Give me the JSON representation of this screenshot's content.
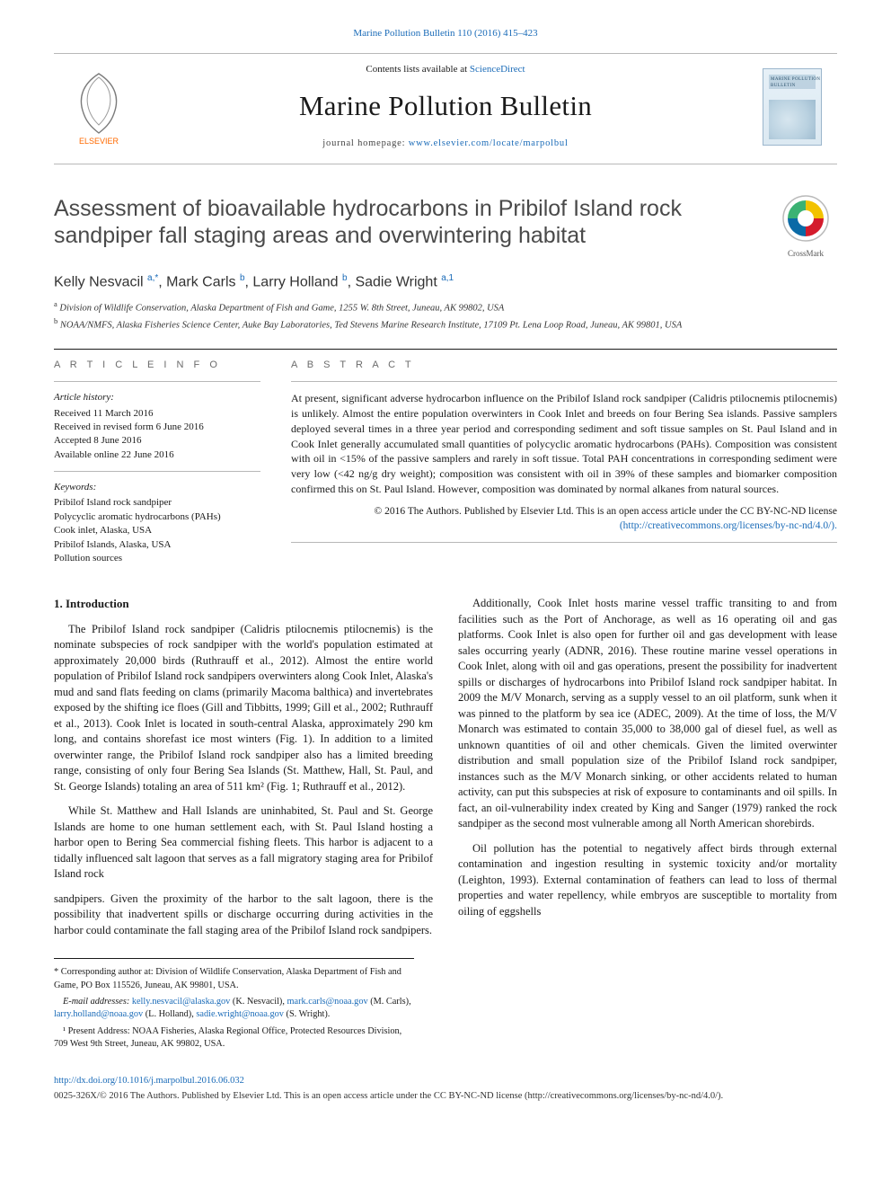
{
  "top_link": "Marine Pollution Bulletin 110 (2016) 415–423",
  "masthead": {
    "contents_prefix": "Contents lists available at ",
    "contents_link": "ScienceDirect",
    "journal": "Marine Pollution Bulletin",
    "homepage_prefix": "journal homepage: ",
    "homepage_url": "www.elsevier.com/locate/marpolbul",
    "cover_caption": "MARINE POLLUTION BULLETIN",
    "elsevier_color": "#ff6a00",
    "elsevier_label": "ELSEVIER"
  },
  "title": "Assessment of bioavailable hydrocarbons in Pribilof Island rock sandpiper fall staging areas and overwintering habitat",
  "crossmark_label": "CrossMark",
  "authors_html": "Kelly Nesvacil <sup>a,*</sup>, Mark Carls <sup>b</sup>, Larry Holland <sup>b</sup>, Sadie Wright <sup>a,1</sup>",
  "authors": [
    {
      "name": "Kelly Nesvacil",
      "marks": "a,*"
    },
    {
      "name": "Mark Carls",
      "marks": "b"
    },
    {
      "name": "Larry Holland",
      "marks": "b"
    },
    {
      "name": "Sadie Wright",
      "marks": "a,1"
    }
  ],
  "affiliations": [
    {
      "mark": "a",
      "text": "Division of Wildlife Conservation, Alaska Department of Fish and Game, 1255 W. 8th Street, Juneau, AK 99802, USA"
    },
    {
      "mark": "b",
      "text": "NOAA/NMFS, Alaska Fisheries Science Center, Auke Bay Laboratories, Ted Stevens Marine Research Institute, 17109 Pt. Lena Loop Road, Juneau, AK 99801, USA"
    }
  ],
  "info": {
    "heading": "A R T I C L E   I N F O",
    "history_heading": "Article history:",
    "history": [
      "Received 11 March 2016",
      "Received in revised form 6 June 2016",
      "Accepted 8 June 2016",
      "Available online 22 June 2016"
    ],
    "keywords_heading": "Keywords:",
    "keywords": [
      "Pribilof Island rock sandpiper",
      "Polycyclic aromatic hydrocarbons (PAHs)",
      "Cook inlet, Alaska, USA",
      "Pribilof Islands, Alaska, USA",
      "Pollution sources"
    ]
  },
  "abstract": {
    "heading": "A B S T R A C T",
    "text": "At present, significant adverse hydrocarbon influence on the Pribilof Island rock sandpiper (Calidris ptilocnemis ptilocnemis) is unlikely. Almost the entire population overwinters in Cook Inlet and breeds on four Bering Sea islands. Passive samplers deployed several times in a three year period and corresponding sediment and soft tissue samples on St. Paul Island and in Cook Inlet generally accumulated small quantities of polycyclic aromatic hydrocarbons (PAHs). Composition was consistent with oil in <15% of the passive samplers and rarely in soft tissue. Total PAH concentrations in corresponding sediment were very low (<42 ng/g dry weight); composition was consistent with oil in 39% of these samples and biomarker composition confirmed this on St. Paul Island. However, composition was dominated by normal alkanes from natural sources.",
    "copyright": "© 2016 The Authors. Published by Elsevier Ltd. This is an open access article under the CC BY-NC-ND license",
    "license_url": "(http://creativecommons.org/licenses/by-nc-nd/4.0/)."
  },
  "body": {
    "section_heading": "1. Introduction",
    "paragraphs": [
      "The Pribilof Island rock sandpiper (Calidris ptilocnemis ptilocnemis) is the nominate subspecies of rock sandpiper with the world's population estimated at approximately 20,000 birds (Ruthrauff et al., 2012). Almost the entire world population of Pribilof Island rock sandpipers overwinters along Cook Inlet, Alaska's mud and sand flats feeding on clams (primarily Macoma balthica) and invertebrates exposed by the shifting ice floes (Gill and Tibbitts, 1999; Gill et al., 2002; Ruthrauff et al., 2013). Cook Inlet is located in south-central Alaska, approximately 290 km long, and contains shorefast ice most winters (Fig. 1). In addition to a limited overwinter range, the Pribilof Island rock sandpiper also has a limited breeding range, consisting of only four Bering Sea Islands (St. Matthew, Hall, St. Paul, and St. George Islands) totaling an area of 511 km² (Fig. 1; Ruthrauff et al., 2012).",
      "While St. Matthew and Hall Islands are uninhabited, St. Paul and St. George Islands are home to one human settlement each, with St. Paul Island hosting a harbor open to Bering Sea commercial fishing fleets. This harbor is adjacent to a tidally influenced salt lagoon that serves as a fall migratory staging area for Pribilof Island rock",
      "sandpipers. Given the proximity of the harbor to the salt lagoon, there is the possibility that inadvertent spills or discharge occurring during activities in the harbor could contaminate the fall staging area of the Pribilof Island rock sandpipers.",
      "Additionally, Cook Inlet hosts marine vessel traffic transiting to and from facilities such as the Port of Anchorage, as well as 16 operating oil and gas platforms. Cook Inlet is also open for further oil and gas development with lease sales occurring yearly (ADNR, 2016). These routine marine vessel operations in Cook Inlet, along with oil and gas operations, present the possibility for inadvertent spills or discharges of hydrocarbons into Pribilof Island rock sandpiper habitat. In 2009 the M/V Monarch, serving as a supply vessel to an oil platform, sunk when it was pinned to the platform by sea ice (ADEC, 2009). At the time of loss, the M/V Monarch was estimated to contain 35,000 to 38,000 gal of diesel fuel, as well as unknown quantities of oil and other chemicals. Given the limited overwinter distribution and small population size of the Pribilof Island rock sandpiper, instances such as the M/V Monarch sinking, or other accidents related to human activity, can put this subspecies at risk of exposure to contaminants and oil spills. In fact, an oil-vulnerability index created by King and Sanger (1979) ranked the rock sandpiper as the second most vulnerable among all North American shorebirds.",
      "Oil pollution has the potential to negatively affect birds through external contamination and ingestion resulting in systemic toxicity and/or mortality (Leighton, 1993). External contamination of feathers can lead to loss of thermal properties and water repellency, while embryos are susceptible to mortality from oiling of eggshells"
    ]
  },
  "footnotes": {
    "corr_label": "* Corresponding author at: Division of Wildlife Conservation, Alaska Department of Fish and Game, PO Box 115526, Juneau, AK 99801, USA.",
    "email_label": "E-mail addresses:",
    "emails": [
      {
        "addr": "kelly.nesvacil@alaska.gov",
        "who": "(K. Nesvacil),"
      },
      {
        "addr": "mark.carls@noaa.gov",
        "who": "(M. Carls),"
      },
      {
        "addr": "larry.holland@noaa.gov",
        "who": "(L. Holland),"
      },
      {
        "addr": "sadie.wright@noaa.gov",
        "who": "(S. Wright)."
      }
    ],
    "present_addr": "¹ Present Address: NOAA Fisheries, Alaska Regional Office, Protected Resources Division, 709 West 9th Street, Juneau, AK 99802, USA."
  },
  "bottom": {
    "doi": "http://dx.doi.org/10.1016/j.marpolbul.2016.06.032",
    "copyright": "0025-326X/© 2016 The Authors. Published by Elsevier Ltd. This is an open access article under the CC BY-NC-ND license (http://creativecommons.org/licenses/by-nc-nd/4.0/)."
  },
  "colors": {
    "link": "#1a6bb8",
    "rule": "#1a1a1a",
    "rule_light": "#b8b8b8",
    "title_gray": "#4a4a4a",
    "elsevier_orange": "#ff6a00",
    "crossmark_red": "#d41b2c",
    "crossmark_blue": "#0a6aa6",
    "crossmark_yellow": "#f2c200",
    "crossmark_green": "#3bb273"
  }
}
